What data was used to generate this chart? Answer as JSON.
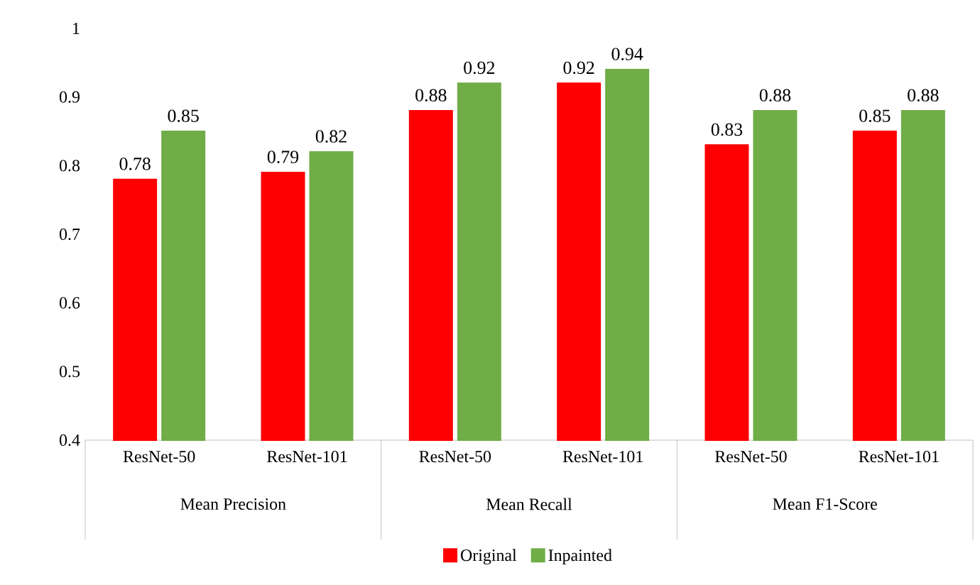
{
  "chart_data": {
    "type": "bar",
    "categories": [
      "ResNet-50",
      "ResNet-101",
      "ResNet-50",
      "ResNet-101",
      "ResNet-50",
      "ResNet-101"
    ],
    "series": [
      {
        "name": "Original",
        "color": "#ff0000",
        "values": [
          0.78,
          0.79,
          0.88,
          0.92,
          0.83,
          0.85
        ]
      },
      {
        "name": "Inpainted",
        "color": "#70ad47",
        "values": [
          0.85,
          0.82,
          0.92,
          0.94,
          0.88,
          0.88
        ]
      }
    ],
    "annotations": [
      "Mean Precision",
      "Mean Recall",
      "Mean F1-Score"
    ],
    "ylim": [
      0.4,
      1
    ],
    "yticks": [
      0.4,
      0.5,
      0.6,
      0.7,
      0.8,
      0.9,
      1
    ],
    "data_labels": true,
    "legend": "bottom",
    "grid": false
  }
}
